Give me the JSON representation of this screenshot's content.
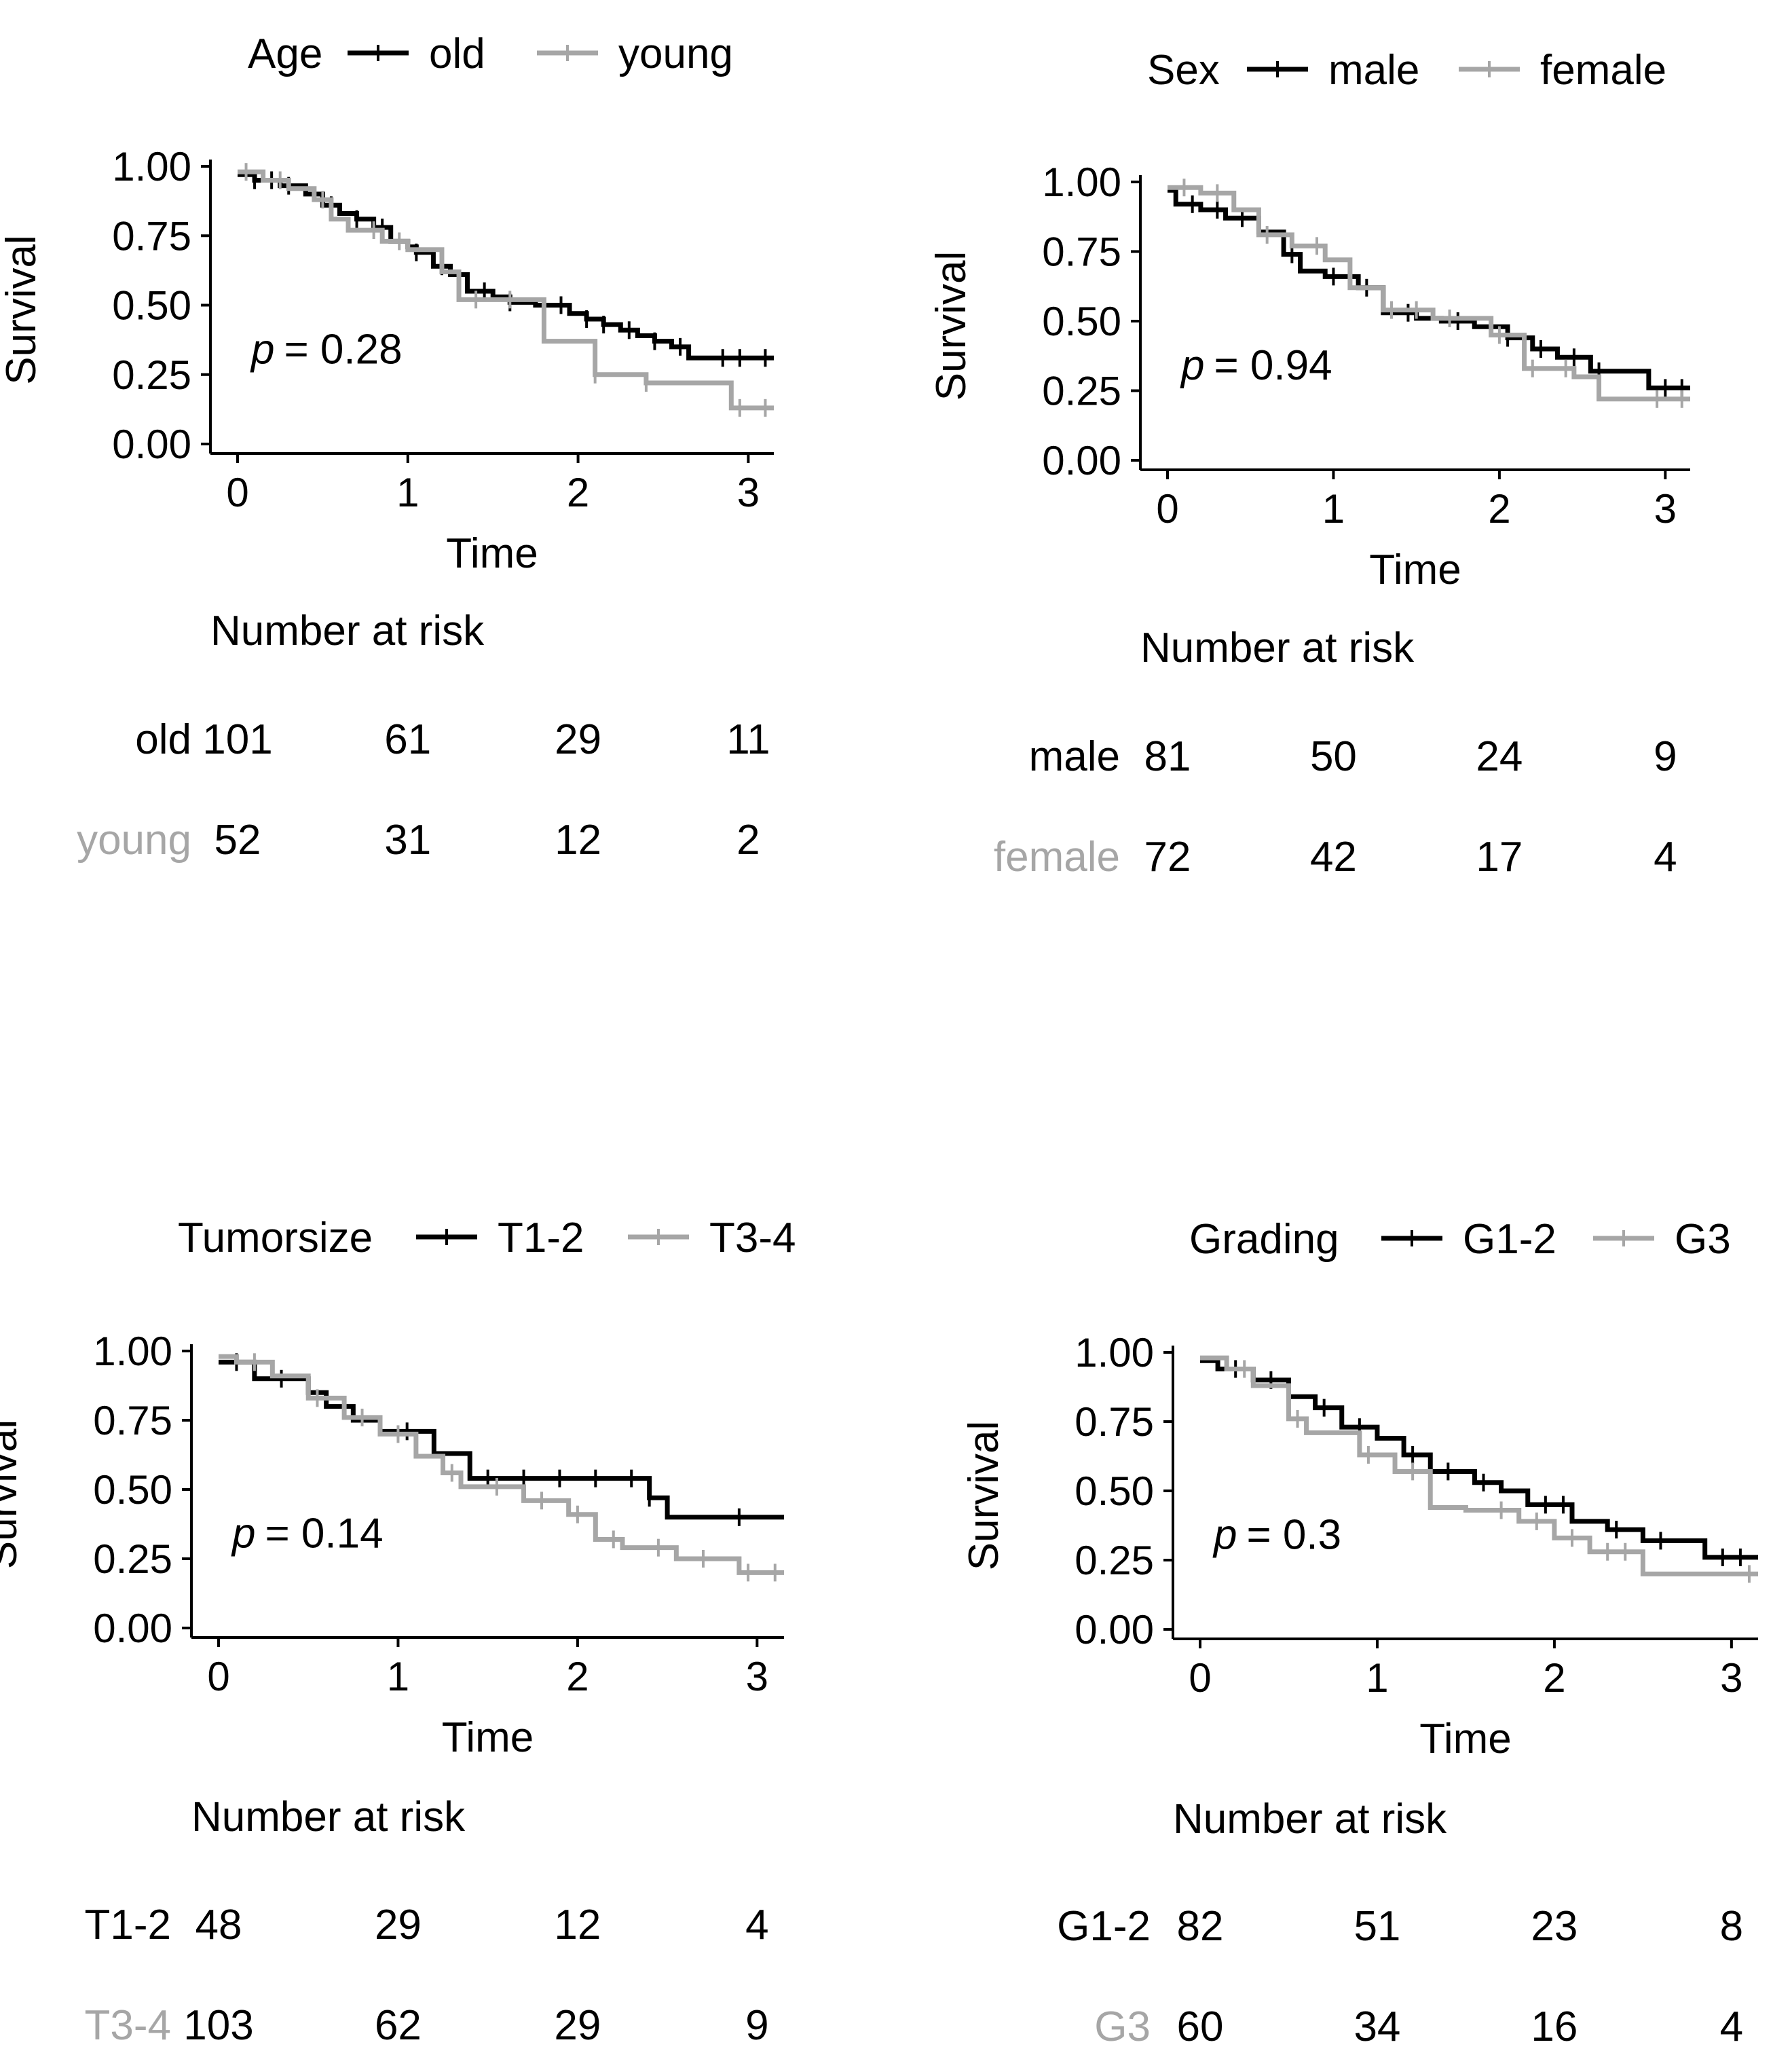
{
  "colors": {
    "group1": "#000000",
    "group2": "#a6a6a6",
    "axis": "#000000",
    "text": "#000000"
  },
  "chart_data": [
    {
      "type": "line",
      "subtype": "kaplan-meier",
      "title": "",
      "xlabel": "Time",
      "ylabel": "Survival",
      "xlim": [
        0,
        3.15
      ],
      "ylim": [
        0,
        1
      ],
      "x_ticks": [
        "0",
        "1",
        "2",
        "3"
      ],
      "y_ticks": [
        "0.00",
        "0.25",
        "0.50",
        "0.75",
        "1.00"
      ],
      "grid": false,
      "legend": {
        "title": "Age",
        "position": "top",
        "entries": [
          "old",
          "young"
        ]
      },
      "annotation": {
        "p_label": "p",
        "p_value": "= 0.28"
      },
      "series": [
        {
          "name": "old",
          "x": [
            0,
            0.1,
            0.25,
            0.4,
            0.5,
            0.6,
            0.7,
            0.8,
            0.9,
            1.0,
            1.05,
            1.15,
            1.25,
            1.35,
            1.5,
            1.6,
            1.75,
            1.95,
            2.05,
            2.15,
            2.25,
            2.35,
            2.45,
            2.55,
            2.65,
            3.15
          ],
          "y": [
            0.97,
            0.95,
            0.93,
            0.9,
            0.86,
            0.83,
            0.81,
            0.78,
            0.73,
            0.71,
            0.69,
            0.64,
            0.61,
            0.55,
            0.53,
            0.51,
            0.5,
            0.47,
            0.45,
            0.43,
            0.41,
            0.39,
            0.37,
            0.35,
            0.31,
            0.31
          ],
          "censored_x": [
            0.1,
            0.2,
            0.3,
            0.55,
            0.7,
            0.85,
            1.05,
            1.2,
            1.45,
            1.6,
            1.9,
            2.05,
            2.15,
            2.3,
            2.45,
            2.6,
            2.85,
            2.95,
            3.1
          ]
        },
        {
          "name": "young",
          "x": [
            0,
            0.15,
            0.3,
            0.45,
            0.55,
            0.65,
            0.85,
            1.0,
            1.2,
            1.3,
            1.8,
            2.1,
            2.4,
            2.9,
            3.15
          ],
          "y": [
            0.98,
            0.95,
            0.92,
            0.88,
            0.81,
            0.77,
            0.73,
            0.7,
            0.62,
            0.52,
            0.37,
            0.25,
            0.22,
            0.13,
            0.13
          ],
          "censored_x": [
            0.05,
            0.25,
            0.5,
            0.8,
            0.95,
            1.4,
            1.6,
            2.1,
            2.4,
            2.95,
            3.1
          ]
        }
      ],
      "risk_table": {
        "title": "Number at risk",
        "times": [
          "0",
          "1",
          "2",
          "3"
        ],
        "rows": [
          {
            "label": "old",
            "values": [
              "101",
              "61",
              "29",
              "11"
            ]
          },
          {
            "label": "young",
            "values": [
              "52",
              "31",
              "12",
              "2"
            ]
          }
        ]
      }
    },
    {
      "type": "line",
      "subtype": "kaplan-meier",
      "title": "",
      "xlabel": "Time",
      "ylabel": "Survival",
      "xlim": [
        0,
        3.15
      ],
      "ylim": [
        0,
        1
      ],
      "x_ticks": [
        "0",
        "1",
        "2",
        "3"
      ],
      "y_ticks": [
        "0.00",
        "0.25",
        "0.50",
        "0.75",
        "1.00"
      ],
      "grid": false,
      "legend": {
        "title": "Sex",
        "position": "top",
        "entries": [
          "male",
          "female"
        ]
      },
      "annotation": {
        "p_label": "p",
        "p_value": "= 0.94"
      },
      "series": [
        {
          "name": "male",
          "x": [
            0,
            0.05,
            0.2,
            0.35,
            0.55,
            0.7,
            0.8,
            0.95,
            1.15,
            1.3,
            1.5,
            1.65,
            1.85,
            2.05,
            2.2,
            2.35,
            2.55,
            2.9,
            3.15
          ],
          "y": [
            0.97,
            0.92,
            0.9,
            0.87,
            0.82,
            0.74,
            0.68,
            0.66,
            0.62,
            0.53,
            0.51,
            0.5,
            0.48,
            0.44,
            0.4,
            0.37,
            0.32,
            0.26,
            0.26
          ],
          "censored_x": [
            0.15,
            0.3,
            0.45,
            0.75,
            1.0,
            1.2,
            1.45,
            1.75,
            2.05,
            2.25,
            2.45,
            2.6,
            3.0,
            3.1
          ]
        },
        {
          "name": "female",
          "x": [
            0,
            0.2,
            0.4,
            0.55,
            0.75,
            0.95,
            1.1,
            1.3,
            1.6,
            1.95,
            2.15,
            2.45,
            2.6,
            3.15
          ],
          "y": [
            0.98,
            0.96,
            0.9,
            0.81,
            0.77,
            0.72,
            0.62,
            0.54,
            0.51,
            0.45,
            0.33,
            0.3,
            0.22,
            0.22
          ],
          "censored_x": [
            0.1,
            0.3,
            0.6,
            0.9,
            1.35,
            1.5,
            1.7,
            2.0,
            2.2,
            2.4,
            2.95,
            3.1
          ]
        }
      ],
      "risk_table": {
        "title": "Number at risk",
        "times": [
          "0",
          "1",
          "2",
          "3"
        ],
        "rows": [
          {
            "label": "male",
            "values": [
              "81",
              "50",
              "24",
              "9"
            ]
          },
          {
            "label": "female",
            "values": [
              "72",
              "42",
              "17",
              "4"
            ]
          }
        ]
      }
    },
    {
      "type": "line",
      "subtype": "kaplan-meier",
      "title": "",
      "xlabel": "Time",
      "ylabel": "Survival",
      "xlim": [
        0,
        3.15
      ],
      "ylim": [
        0,
        1
      ],
      "x_ticks": [
        "0",
        "1",
        "2",
        "3"
      ],
      "y_ticks": [
        "0.00",
        "0.25",
        "0.50",
        "0.75",
        "1.00"
      ],
      "grid": false,
      "legend": {
        "title": "Tumorsize",
        "position": "top",
        "entries": [
          "T1-2",
          "T3-4"
        ]
      },
      "annotation": {
        "p_label": "p",
        "p_value": "= 0.14"
      },
      "series": [
        {
          "name": "T1-2",
          "x": [
            0,
            0.2,
            0.5,
            0.6,
            0.75,
            0.9,
            1.2,
            1.4,
            2.4,
            2.5,
            3.15
          ],
          "y": [
            0.96,
            0.9,
            0.85,
            0.8,
            0.75,
            0.71,
            0.63,
            0.54,
            0.47,
            0.4,
            0.4
          ],
          "censored_x": [
            0.1,
            0.35,
            0.7,
            1.05,
            1.5,
            1.7,
            1.9,
            2.1,
            2.3,
            2.4,
            2.9
          ]
        },
        {
          "name": "T3-4",
          "x": [
            0,
            0.1,
            0.3,
            0.5,
            0.7,
            0.9,
            1.1,
            1.25,
            1.35,
            1.7,
            1.95,
            2.1,
            2.25,
            2.55,
            2.9,
            3.15
          ],
          "y": [
            0.98,
            0.96,
            0.91,
            0.83,
            0.76,
            0.7,
            0.62,
            0.56,
            0.51,
            0.46,
            0.41,
            0.32,
            0.29,
            0.25,
            0.2,
            0.2
          ],
          "censored_x": [
            0.2,
            0.55,
            0.8,
            1.0,
            1.3,
            1.55,
            1.8,
            2.0,
            2.2,
            2.45,
            2.7,
            2.95,
            3.1
          ]
        }
      ],
      "risk_table": {
        "title": "Number at risk",
        "times": [
          "0",
          "1",
          "2",
          "3"
        ],
        "rows": [
          {
            "label": "T1-2",
            "values": [
              "48",
              "29",
              "12",
              "4"
            ]
          },
          {
            "label": "T3-4",
            "values": [
              "103",
              "62",
              "29",
              "9"
            ]
          }
        ]
      }
    },
    {
      "type": "line",
      "subtype": "kaplan-meier",
      "title": "",
      "xlabel": "Time",
      "ylabel": "Survival",
      "xlim": [
        0,
        3.15
      ],
      "ylim": [
        0,
        1
      ],
      "x_ticks": [
        "0",
        "1",
        "2",
        "3"
      ],
      "y_ticks": [
        "0.00",
        "0.25",
        "0.50",
        "0.75",
        "1.00"
      ],
      "grid": false,
      "legend": {
        "title": "Grading",
        "position": "top",
        "entries": [
          "G1-2",
          "G3"
        ]
      },
      "annotation": {
        "p_label": "p",
        "p_value": "= 0.3"
      },
      "series": [
        {
          "name": "G1-2",
          "x": [
            0,
            0.1,
            0.3,
            0.5,
            0.65,
            0.8,
            1.0,
            1.15,
            1.3,
            1.55,
            1.7,
            1.85,
            2.1,
            2.3,
            2.5,
            2.85,
            3.15
          ],
          "y": [
            0.97,
            0.94,
            0.9,
            0.84,
            0.8,
            0.73,
            0.69,
            0.63,
            0.57,
            0.53,
            0.5,
            0.45,
            0.39,
            0.36,
            0.32,
            0.26,
            0.26
          ],
          "censored_x": [
            0.2,
            0.4,
            0.7,
            0.9,
            1.2,
            1.4,
            1.6,
            1.95,
            2.05,
            2.35,
            2.6,
            2.95,
            3.05
          ]
        },
        {
          "name": "G3",
          "x": [
            0,
            0.15,
            0.3,
            0.5,
            0.6,
            0.9,
            1.1,
            1.3,
            1.5,
            1.8,
            2.0,
            2.2,
            2.5,
            3.15
          ],
          "y": [
            0.98,
            0.94,
            0.88,
            0.76,
            0.71,
            0.63,
            0.57,
            0.44,
            0.43,
            0.39,
            0.33,
            0.28,
            0.2,
            0.2
          ],
          "censored_x": [
            0.25,
            0.55,
            0.95,
            1.2,
            1.7,
            1.9,
            2.1,
            2.3,
            2.4,
            3.1
          ]
        }
      ],
      "risk_table": {
        "title": "Number at risk",
        "times": [
          "0",
          "1",
          "2",
          "3"
        ],
        "rows": [
          {
            "label": "G1-2",
            "values": [
              "82",
              "51",
              "23",
              "8"
            ]
          },
          {
            "label": "G3",
            "values": [
              "60",
              "34",
              "16",
              "4"
            ]
          }
        ]
      }
    }
  ]
}
